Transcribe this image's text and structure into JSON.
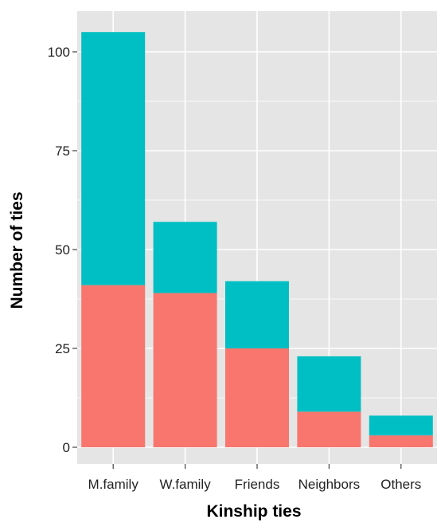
{
  "chart_data": {
    "type": "bar",
    "stacked": true,
    "title": "",
    "xlabel": "Kinship ties",
    "ylabel": "Number of ties",
    "categories": [
      "M.family",
      "W.family",
      "Friends",
      "Neighbors",
      "Others"
    ],
    "series": [
      {
        "values": [
          41,
          39,
          25,
          9,
          3
        ],
        "color": "#F8766D"
      },
      {
        "values": [
          64,
          18,
          17,
          14,
          5
        ],
        "color": "#00BFC4"
      }
    ],
    "totals": [
      105,
      57,
      42,
      23,
      8
    ],
    "yticks": [
      0,
      25,
      50,
      75,
      100
    ],
    "ylim": [
      0,
      110
    ],
    "grid": true,
    "legend": "none",
    "panel_color": "#E5E5E5",
    "grid_color": "#FFFFFF"
  }
}
